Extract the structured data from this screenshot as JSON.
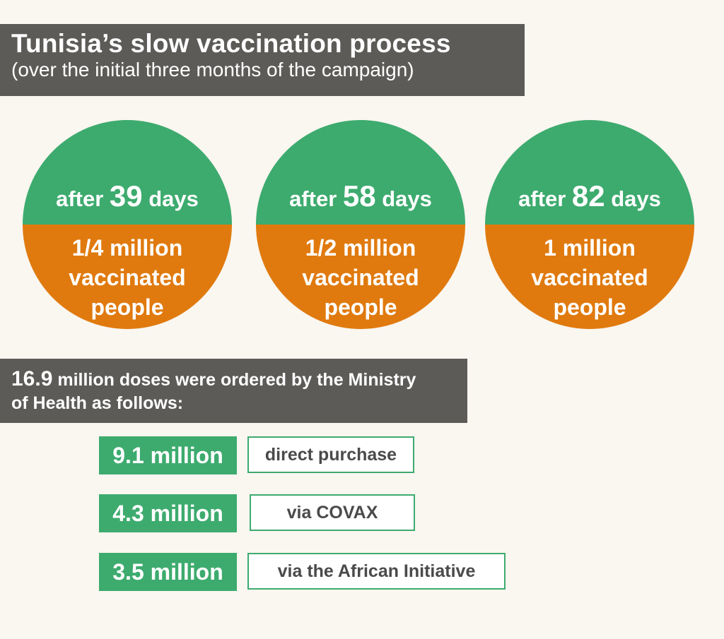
{
  "header": {
    "title": "Tunisia’s slow vaccination process",
    "subtitle": "(over the initial three months of the campaign)"
  },
  "milestones": [
    {
      "prefix": "after ",
      "days": "39",
      "suffix": " days",
      "count": "1/4 million",
      "line2": "vaccinated",
      "line3": "people"
    },
    {
      "prefix": "after ",
      "days": "58",
      "suffix": " days",
      "count": "1/2 million",
      "line2": "vaccinated",
      "line3": "people"
    },
    {
      "prefix": "after ",
      "days": "82",
      "suffix": " days",
      "count": "1 million",
      "line2": "vaccinated",
      "line3": "people"
    }
  ],
  "doses": {
    "total": "16.9",
    "text_line1": " million doses were ordered by the Ministry",
    "text_line2": "of Health as follows:"
  },
  "breakdown": [
    {
      "amount": "9.1 million",
      "method": "direct purchase"
    },
    {
      "amount": "4.3 million",
      "method": "via COVAX"
    },
    {
      "amount": "3.5 million",
      "method": "via the African Initiative"
    }
  ],
  "colors": {
    "green": "#3dab6e",
    "orange": "#e07a0e",
    "dark_gray": "#5c5b58",
    "background": "#faf6f0"
  }
}
